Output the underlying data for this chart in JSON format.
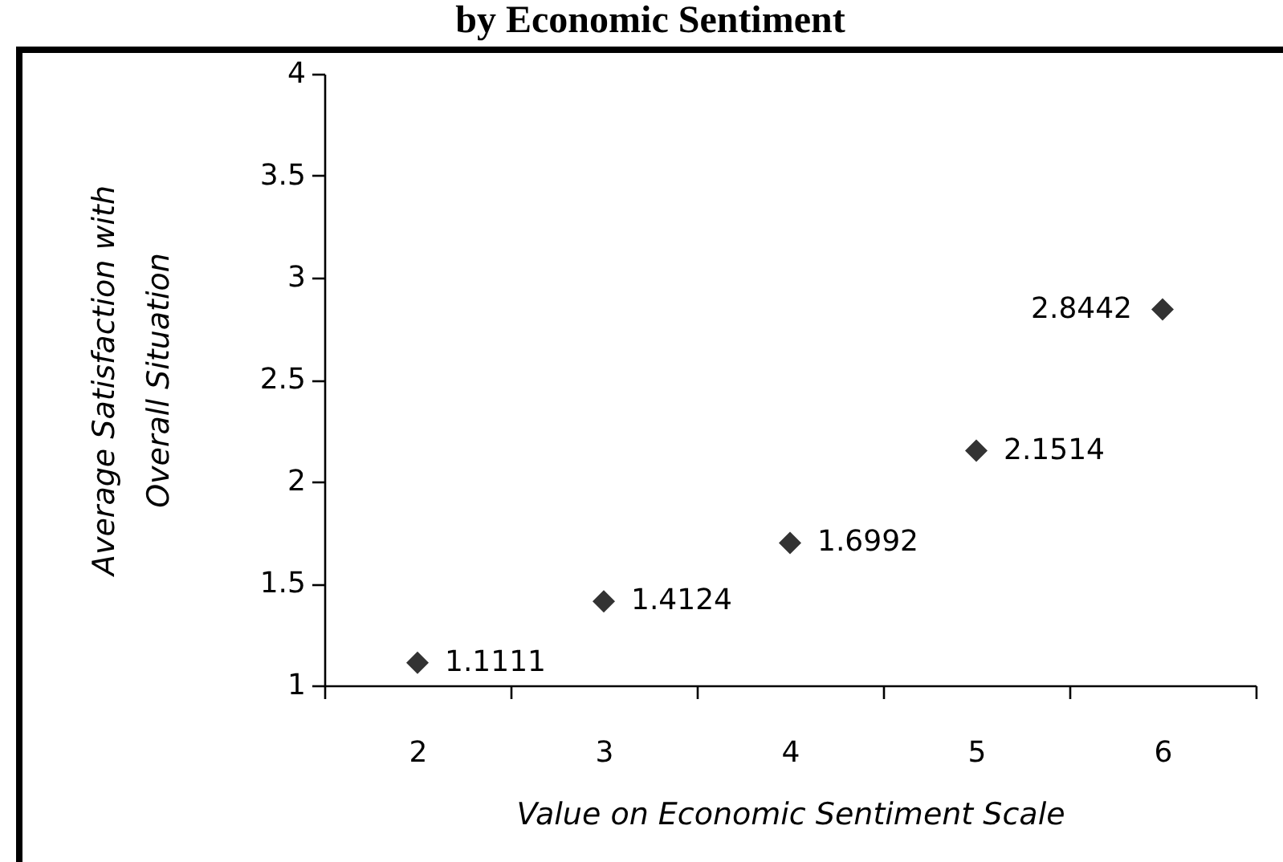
{
  "chart_data": {
    "type": "scatter",
    "title": "by Economic Sentiment",
    "xlabel": "Value on Economic Sentiment Scale",
    "ylabel": "Average Satisfaction with Overall Situation",
    "categories": [
      "2",
      "3",
      "4",
      "5",
      "6"
    ],
    "series": [
      {
        "color": "#333333",
        "values": [
          1.1111,
          1.4124,
          1.6992,
          2.1514,
          2.8442
        ]
      }
    ],
    "ylim": [
      1,
      4
    ],
    "yticks": [
      1,
      1.5,
      2,
      2.5,
      3,
      3.5,
      4
    ],
    "marker": "diamond",
    "data_labels": true
  }
}
